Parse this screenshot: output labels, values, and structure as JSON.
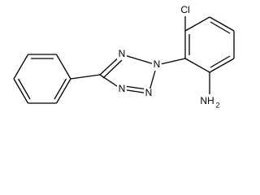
{
  "nodes": [
    {
      "label": "Cl"
    },
    {
      "label": "N"
    },
    {
      "label": "N"
    },
    {
      "label": "N"
    },
    {
      "label": "N"
    },
    {
      "label": "NH",
      "subscript": "2"
    }
  ]
}
